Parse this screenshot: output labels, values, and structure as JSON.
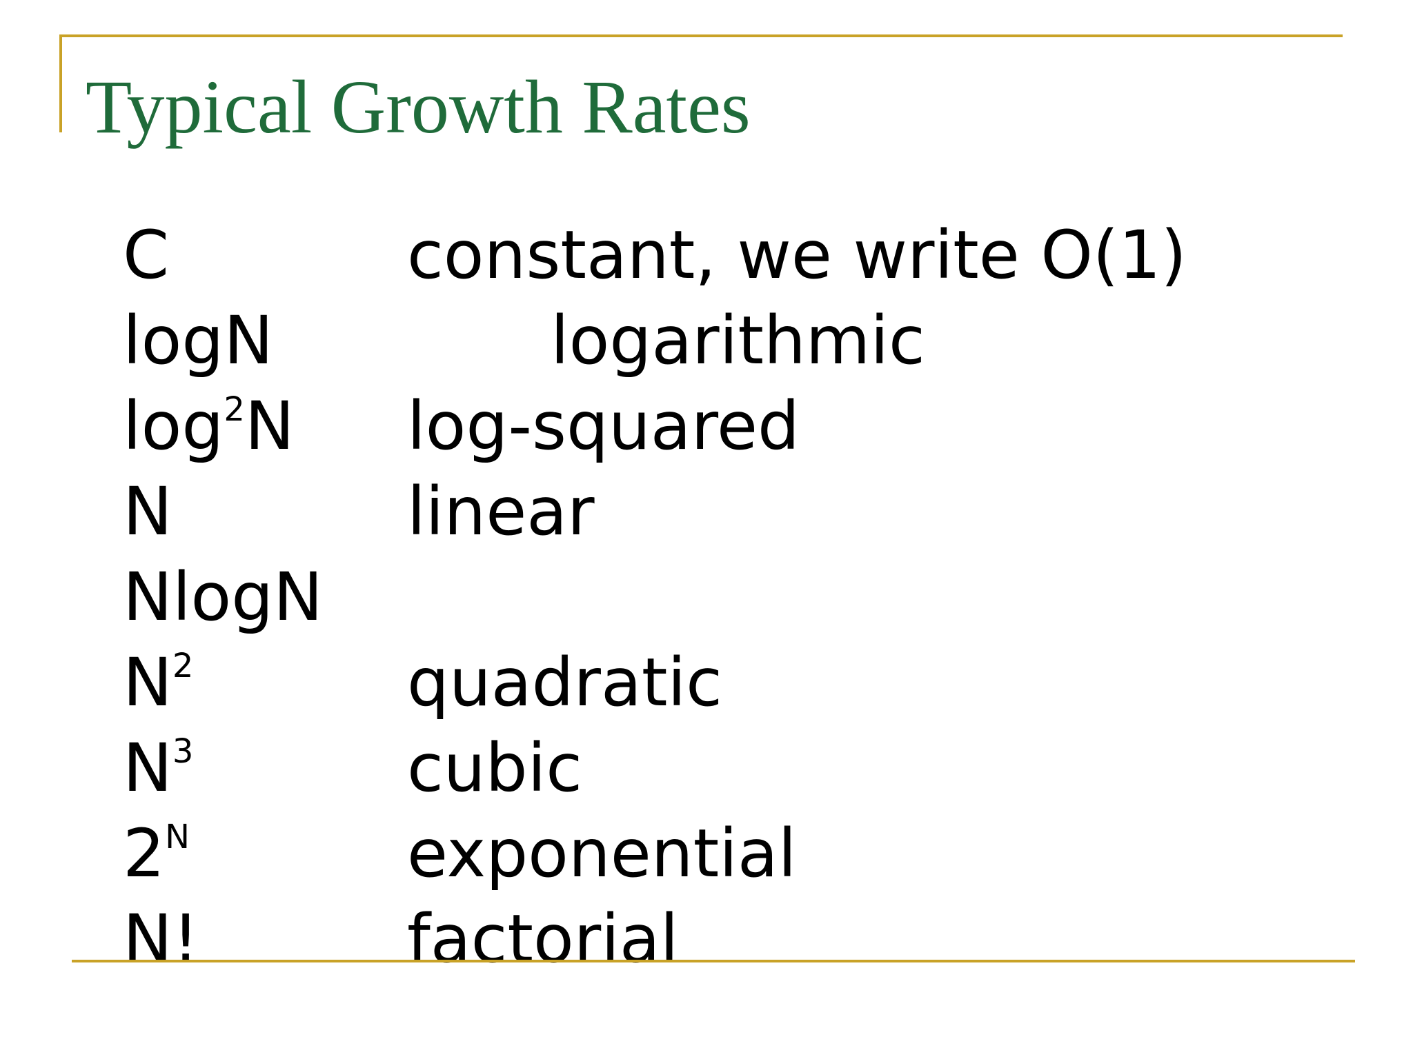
{
  "title": "Typical Growth Rates",
  "rates": [
    {
      "term": "C",
      "description": "constant, we write O(1)"
    },
    {
      "term": "logN",
      "description": "logarithmic"
    },
    {
      "term_base": "log",
      "term_sup": "2",
      "term_tail": "N",
      "description": "log-squared"
    },
    {
      "term": "N",
      "description": "linear"
    },
    {
      "term": "NlogN",
      "description": ""
    },
    {
      "term_base": "N",
      "term_sup": "2",
      "description": "quadratic"
    },
    {
      "term_base": "N",
      "term_sup": "3",
      "description": "cubic"
    },
    {
      "term_base": "2",
      "term_sup": "N",
      "description": "exponential"
    },
    {
      "term": "N!",
      "description": "factorial"
    }
  ],
  "colors": {
    "title": "#1f6b3a",
    "rules": "#c9a227",
    "text": "#000000"
  }
}
